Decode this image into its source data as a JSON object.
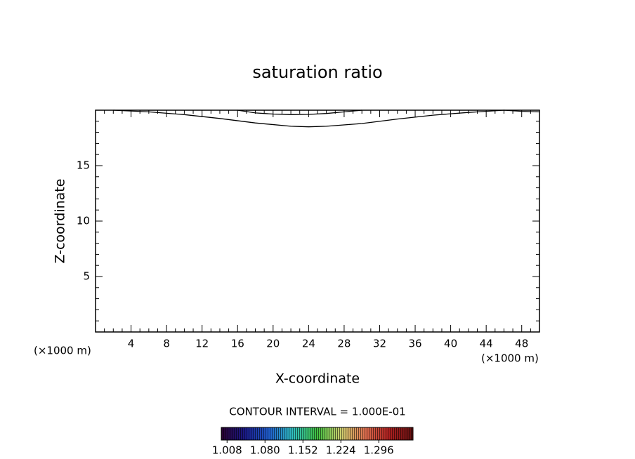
{
  "chart_data": {
    "type": "contour",
    "title": "saturation ratio",
    "x_label": "X-coordinate",
    "y_label": "Z-coordinate",
    "x_unit_labels": [
      "(×1000 m)",
      "(×1000 m)"
    ],
    "xlim": [
      0,
      50
    ],
    "ylim": [
      0,
      20
    ],
    "xticks": [
      4,
      8,
      12,
      16,
      20,
      24,
      28,
      32,
      36,
      40,
      44,
      48
    ],
    "yticks": [
      5,
      10,
      15
    ],
    "xminorticks": [
      1,
      2,
      3,
      5,
      6,
      7,
      9,
      10,
      11,
      13,
      14,
      15,
      17,
      18,
      19,
      21,
      22,
      23,
      25,
      26,
      27,
      29,
      30,
      31,
      33,
      34,
      35,
      37,
      38,
      39,
      41,
      42,
      43,
      45,
      46,
      47,
      49
    ],
    "yminorticks": [
      1,
      2,
      3,
      4,
      6,
      7,
      8,
      9,
      11,
      12,
      13,
      14,
      16,
      17,
      18,
      19
    ],
    "line_color": "#000000",
    "contours": [
      {
        "x": [
          2,
          6,
          10,
          14,
          18,
          22,
          24,
          26,
          30,
          34,
          38,
          42,
          44,
          46,
          48,
          50
        ],
        "y": [
          20,
          19.85,
          19.6,
          19.25,
          18.85,
          18.55,
          18.5,
          18.55,
          18.8,
          19.2,
          19.55,
          19.8,
          19.9,
          20,
          19.9,
          19.85
        ]
      },
      {
        "x": [
          16,
          18,
          20,
          22,
          24,
          26,
          28,
          30
        ],
        "y": [
          20,
          19.75,
          19.65,
          19.6,
          19.62,
          19.7,
          19.85,
          20
        ]
      }
    ],
    "contour_interval_label": "CONTOUR INTERVAL = 1.000E-01",
    "colorbar": {
      "clim": [
        0.997,
        1.361
      ],
      "colors": [
        "#2a0030",
        "#1a1a8a",
        "#2060d0",
        "#30c0c0",
        "#40c040",
        "#d0d070",
        "#e07050",
        "#b02020",
        "#601010"
      ],
      "ticks": [
        1.008,
        {
          "value": 1.08,
          "label": "1.080"
        },
        1.152,
        1.224,
        1.296
      ]
    }
  }
}
